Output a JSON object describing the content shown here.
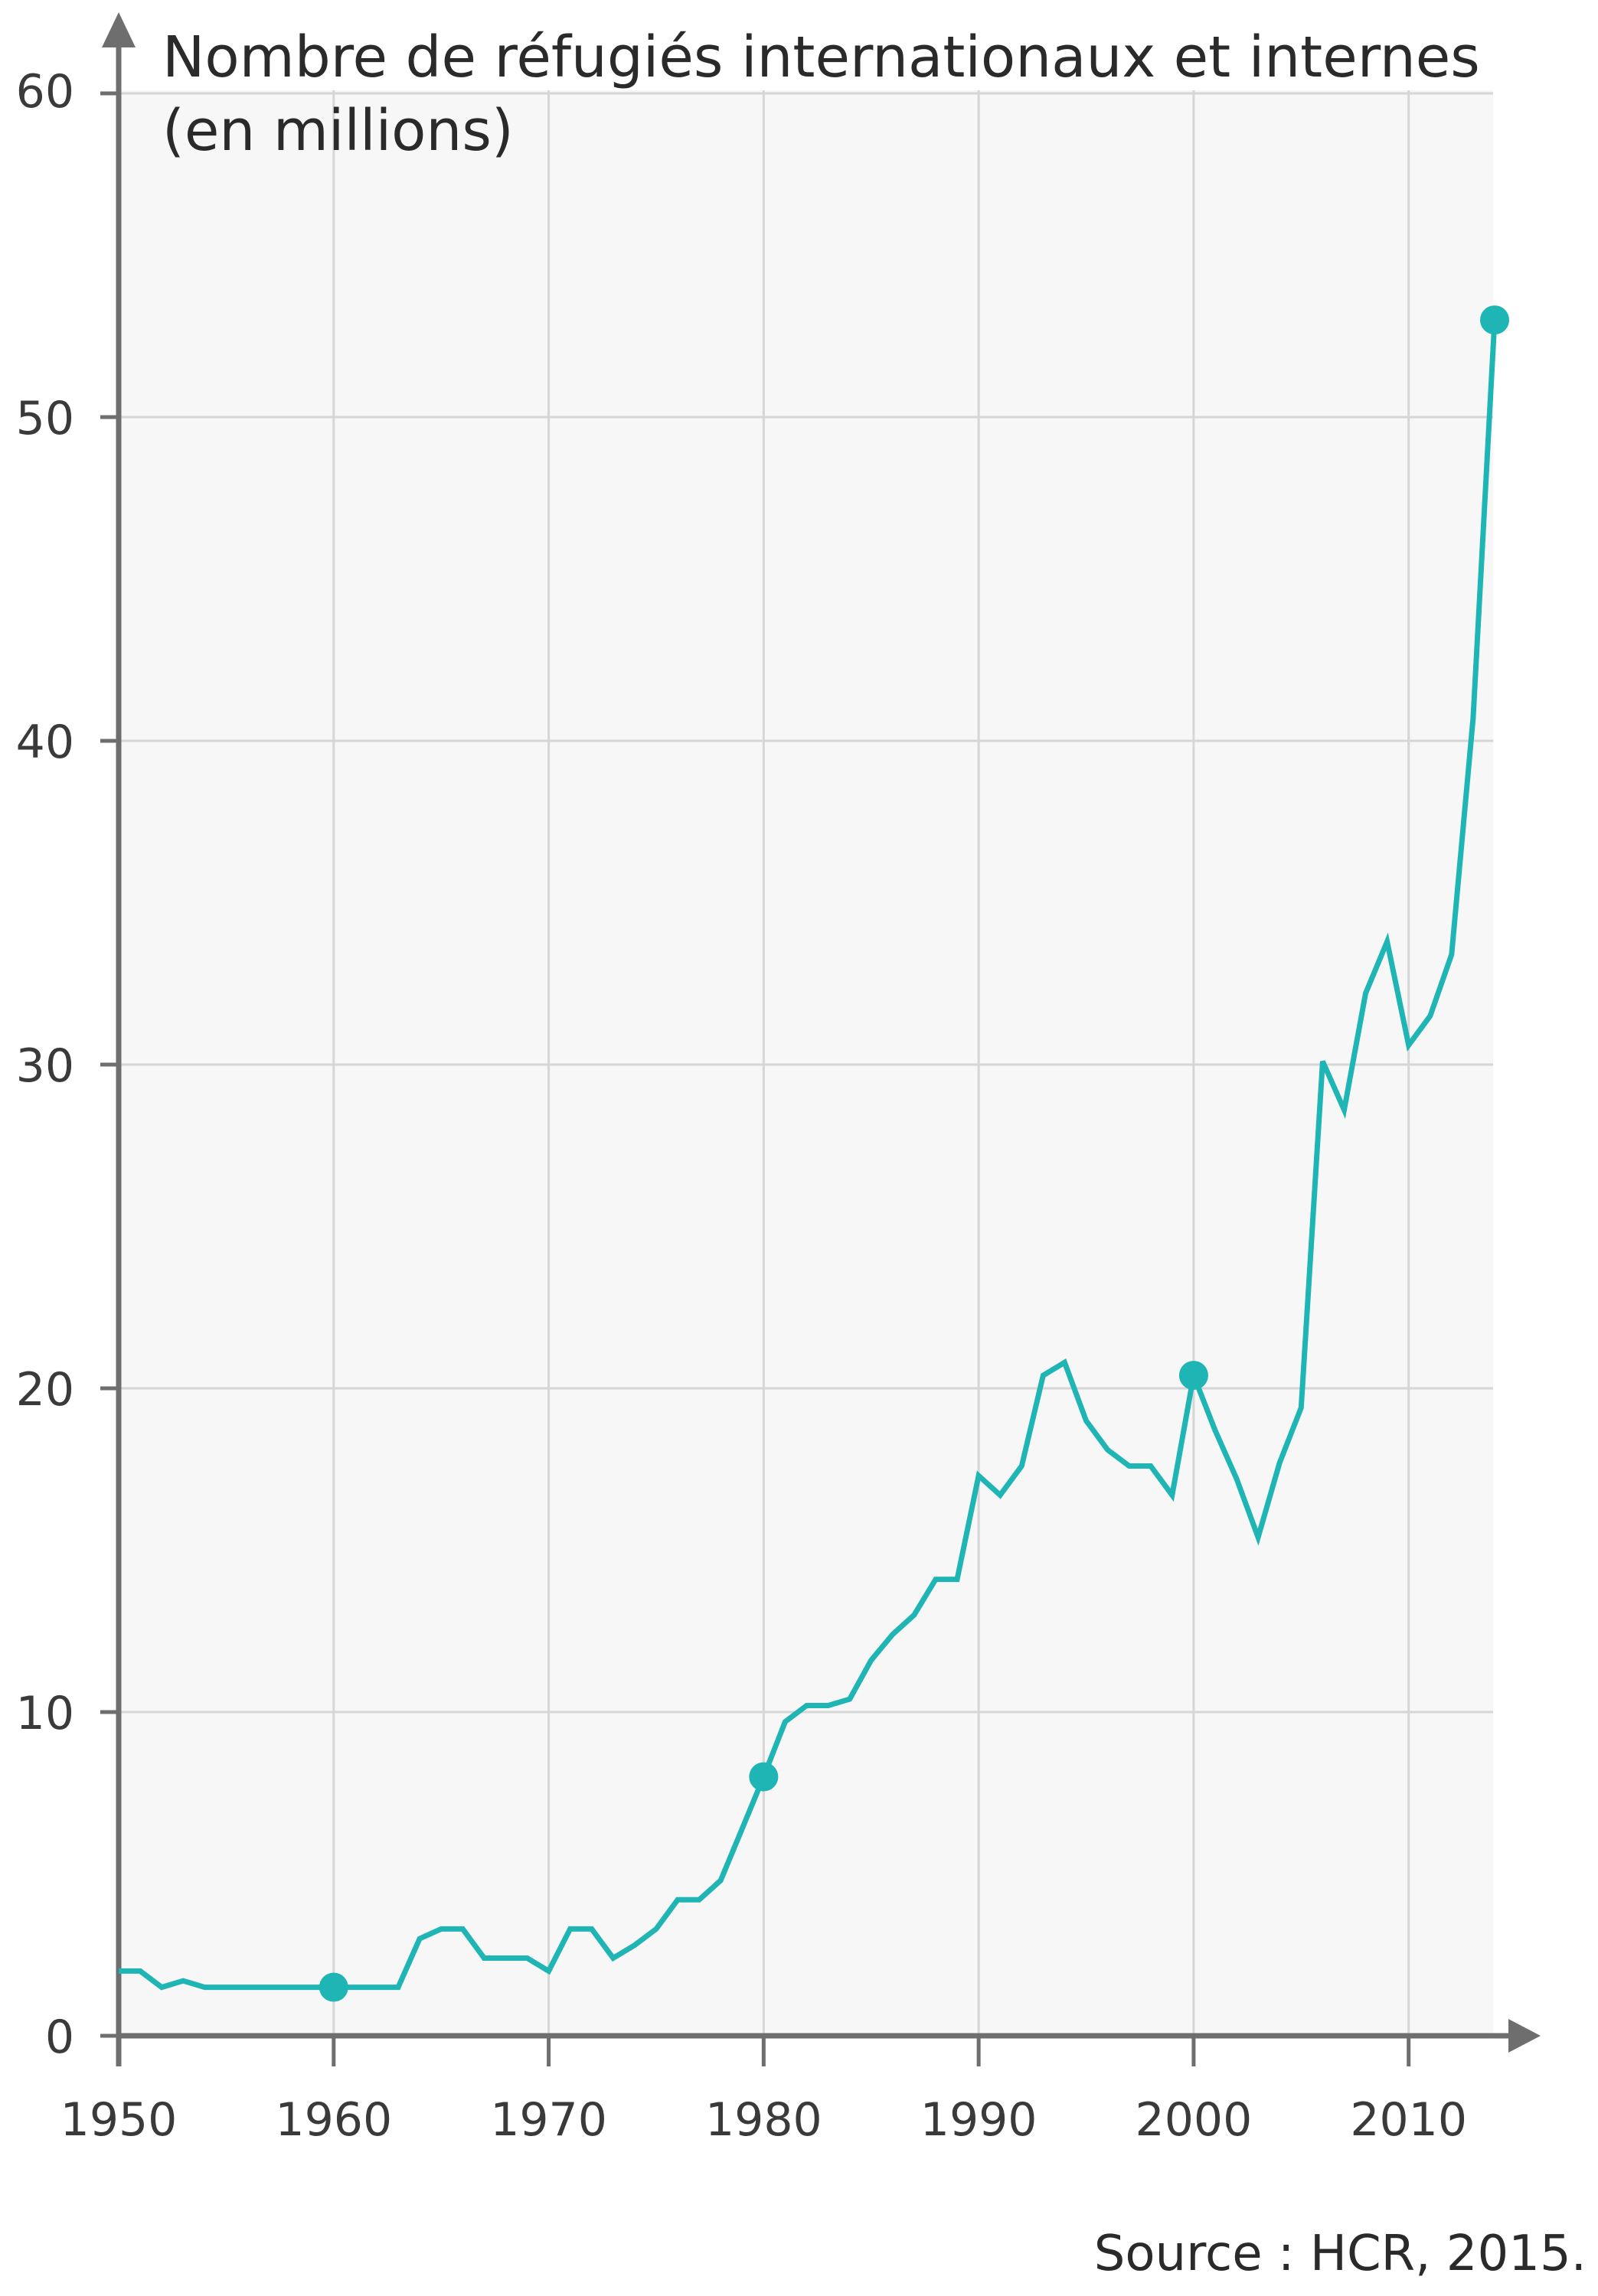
{
  "chart_data": {
    "type": "line",
    "title_line1": "Nombre de réfugiés internationaux et internes",
    "title_line2": "(en millions)",
    "source": "Source : HCR, 2015.",
    "xlabel": "",
    "ylabel": "",
    "xlim": [
      1950,
      2014
    ],
    "ylim": [
      0,
      60
    ],
    "x_ticks": [
      1950,
      1960,
      1970,
      1980,
      1990,
      2000,
      2010
    ],
    "y_ticks": [
      0,
      10,
      20,
      30,
      40,
      50,
      60
    ],
    "grid": true,
    "series": [
      {
        "x": [
          1950,
          1951,
          1952,
          1953,
          1954,
          1955,
          1956,
          1957,
          1958,
          1959,
          1960,
          1961,
          1962,
          1963,
          1964,
          1965,
          1966,
          1967,
          1968,
          1969,
          1970,
          1971,
          1972,
          1973,
          1974,
          1975,
          1976,
          1977,
          1978,
          1979,
          1980,
          1981,
          1982,
          1983,
          1984,
          1985,
          1986,
          1987,
          1988,
          1989,
          1990,
          1991,
          1992,
          1993,
          1994,
          1995,
          1996,
          1997,
          1998,
          1999,
          2000,
          2001,
          2002,
          2003,
          2004,
          2005,
          2006,
          2007,
          2008,
          2009,
          2010,
          2011,
          2012,
          2013,
          2014
        ],
        "y": [
          2.0,
          2.0,
          1.5,
          1.7,
          1.5,
          1.5,
          1.5,
          1.5,
          1.5,
          1.5,
          1.5,
          1.5,
          1.5,
          1.5,
          3.0,
          3.3,
          3.3,
          2.4,
          2.4,
          2.4,
          2.0,
          3.3,
          3.3,
          2.4,
          2.8,
          3.3,
          4.2,
          4.2,
          4.8,
          6.4,
          8.0,
          9.7,
          10.2,
          10.2,
          10.4,
          11.6,
          12.4,
          13.0,
          14.1,
          14.1,
          17.3,
          16.7,
          17.6,
          20.4,
          20.8,
          19.0,
          18.1,
          17.6,
          17.6,
          16.7,
          20.4,
          18.7,
          17.2,
          15.4,
          17.7,
          19.4,
          30.1,
          28.6,
          32.2,
          33.8,
          30.6,
          31.5,
          33.4,
          40.7,
          53.0
        ]
      }
    ],
    "highlighted_points": [
      {
        "x": 1960,
        "y": 1.5
      },
      {
        "x": 1980,
        "y": 8.0
      },
      {
        "x": 2000,
        "y": 20.4
      },
      {
        "x": 2014,
        "y": 53.0
      }
    ],
    "colors": {
      "line": "#1fb5b5",
      "grid": "#d6d6d6",
      "axis": "#6e6e6e",
      "plot_bg": "#f7f7f7",
      "text": "#2a2a2a"
    }
  }
}
